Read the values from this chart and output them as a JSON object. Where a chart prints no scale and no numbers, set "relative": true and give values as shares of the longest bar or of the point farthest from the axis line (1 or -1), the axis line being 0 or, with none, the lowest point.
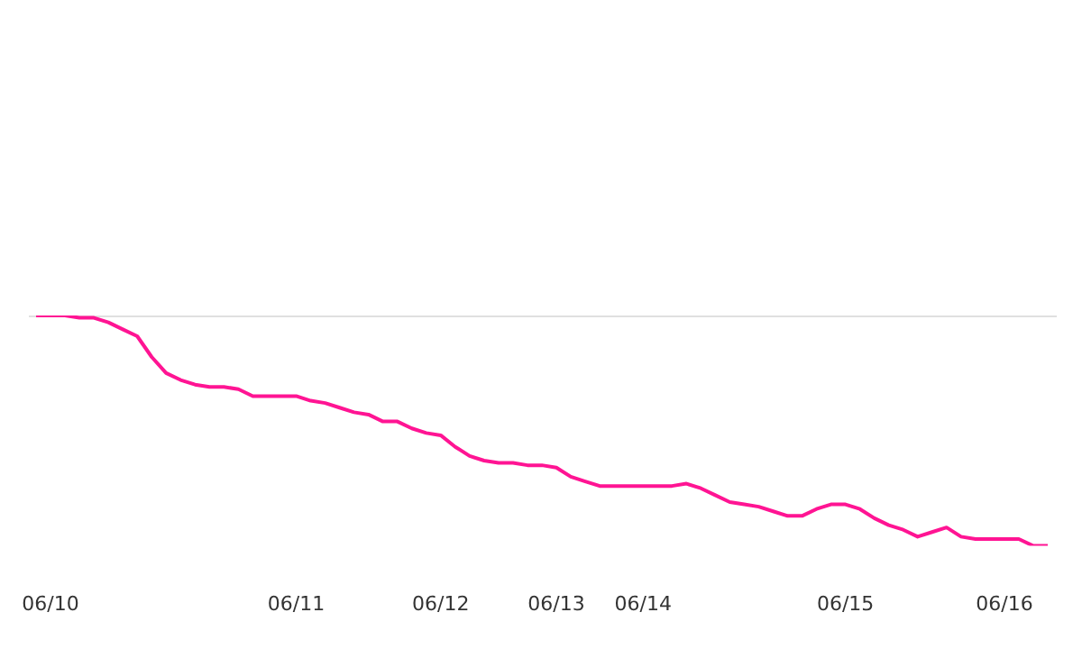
{
  "chart_data": {
    "type": "line",
    "relative": true,
    "color": "#ff1493",
    "categories": [
      null,
      "06/10",
      null,
      null,
      null,
      null,
      null,
      null,
      null,
      null,
      null,
      null,
      null,
      null,
      null,
      null,
      null,
      null,
      "06/11",
      null,
      null,
      null,
      null,
      null,
      null,
      null,
      null,
      null,
      "06/12",
      null,
      null,
      null,
      null,
      null,
      null,
      null,
      "06/13",
      null,
      null,
      null,
      null,
      null,
      "06/14",
      null,
      null,
      null,
      null,
      null,
      null,
      null,
      null,
      null,
      null,
      null,
      null,
      null,
      "06/15",
      null,
      null,
      null,
      null,
      null,
      null,
      null,
      null,
      null,
      null,
      "06/16",
      null,
      null,
      null
    ],
    "values": [
      1.0,
      1.0,
      1.0,
      0.99,
      0.99,
      0.97,
      0.94,
      0.91,
      0.82,
      0.75,
      0.72,
      0.7,
      0.69,
      0.69,
      0.68,
      0.65,
      0.65,
      0.65,
      0.65,
      0.63,
      0.62,
      0.6,
      0.58,
      0.57,
      0.54,
      0.54,
      0.51,
      0.49,
      0.48,
      0.43,
      0.39,
      0.37,
      0.36,
      0.36,
      0.35,
      0.35,
      0.34,
      0.3,
      0.28,
      0.26,
      0.26,
      0.26,
      0.26,
      0.26,
      0.26,
      0.27,
      0.25,
      0.22,
      0.19,
      0.18,
      0.17,
      0.15,
      0.13,
      0.13,
      0.16,
      0.18,
      0.18,
      0.16,
      0.12,
      0.09,
      0.07,
      0.04,
      0.06,
      0.08,
      0.04,
      0.03,
      0.03,
      0.03,
      0.03,
      0.0,
      0.0
    ],
    "ref_lines": [
      {
        "axis": "y",
        "value": 1,
        "color": "#e0e0e0"
      }
    ]
  }
}
